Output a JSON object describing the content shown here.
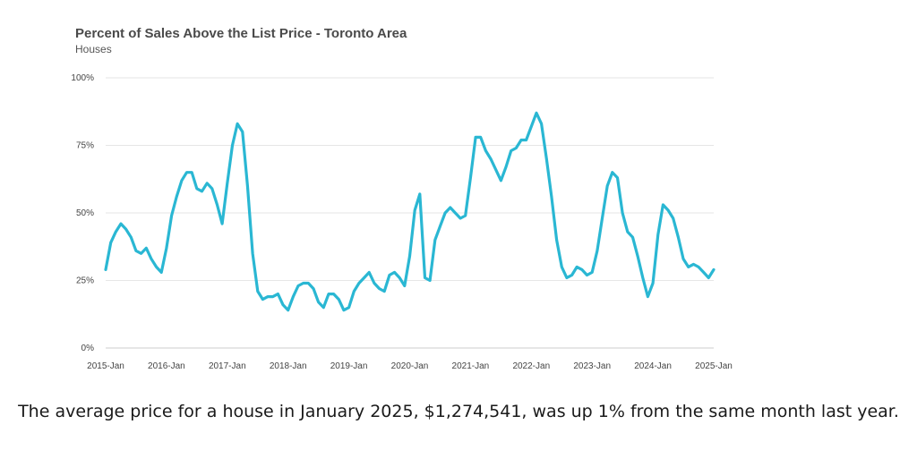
{
  "chart_data": {
    "type": "line",
    "title": "Percent of Sales Above the List Price - Toronto Area",
    "subtitle": "Houses",
    "xlabel": "",
    "ylabel": "",
    "ylim": [
      0,
      100
    ],
    "y_ticks": [
      "0%",
      "25%",
      "50%",
      "75%",
      "100%"
    ],
    "y_tick_values": [
      0,
      25,
      50,
      75,
      100
    ],
    "x_ticks": [
      "2015-Jan",
      "2016-Jan",
      "2017-Jan",
      "2018-Jan",
      "2019-Jan",
      "2020-Jan",
      "2021-Jan",
      "2022-Jan",
      "2023-Jan",
      "2024-Jan",
      "2025-Jan"
    ],
    "grid": true,
    "line_color": "#2ab7d3",
    "series": [
      {
        "x": [
          "2015-01",
          "2015-02",
          "2015-03",
          "2015-04",
          "2015-05",
          "2015-06",
          "2015-07",
          "2015-08",
          "2015-09",
          "2015-10",
          "2015-11",
          "2015-12",
          "2016-01",
          "2016-02",
          "2016-03",
          "2016-04",
          "2016-05",
          "2016-06",
          "2016-07",
          "2016-08",
          "2016-09",
          "2016-10",
          "2016-11",
          "2016-12",
          "2017-01",
          "2017-02",
          "2017-03",
          "2017-04",
          "2017-05",
          "2017-06",
          "2017-07",
          "2017-08",
          "2017-09",
          "2017-10",
          "2017-11",
          "2017-12",
          "2018-01",
          "2018-02",
          "2018-03",
          "2018-04",
          "2018-05",
          "2018-06",
          "2018-07",
          "2018-08",
          "2018-09",
          "2018-10",
          "2018-11",
          "2018-12",
          "2019-01",
          "2019-02",
          "2019-03",
          "2019-04",
          "2019-05",
          "2019-06",
          "2019-07",
          "2019-08",
          "2019-09",
          "2019-10",
          "2019-11",
          "2019-12",
          "2020-01",
          "2020-02",
          "2020-03",
          "2020-04",
          "2020-05",
          "2020-06",
          "2020-07",
          "2020-08",
          "2020-09",
          "2020-10",
          "2020-11",
          "2020-12",
          "2021-01",
          "2021-02",
          "2021-03",
          "2021-04",
          "2021-05",
          "2021-06",
          "2021-07",
          "2021-08",
          "2021-09",
          "2021-10",
          "2021-11",
          "2021-12",
          "2022-01",
          "2022-02",
          "2022-03",
          "2022-04",
          "2022-05",
          "2022-06",
          "2022-07",
          "2022-08",
          "2022-09",
          "2022-10",
          "2022-11",
          "2022-12",
          "2023-01",
          "2023-02",
          "2023-03",
          "2023-04",
          "2023-05",
          "2023-06",
          "2023-07",
          "2023-08",
          "2023-09",
          "2023-10",
          "2023-11",
          "2023-12",
          "2024-01",
          "2024-02",
          "2024-03",
          "2024-04",
          "2024-05",
          "2024-06",
          "2024-07",
          "2024-08",
          "2024-09",
          "2024-10",
          "2024-11",
          "2024-12",
          "2025-01"
        ],
        "values": [
          29,
          39,
          43,
          46,
          44,
          41,
          36,
          35,
          37,
          33,
          30,
          28,
          37,
          49,
          56,
          62,
          65,
          65,
          59,
          58,
          61,
          59,
          53,
          46,
          61,
          75,
          83,
          80,
          60,
          35,
          21,
          18,
          19,
          19,
          20,
          16,
          14,
          19,
          23,
          24,
          24,
          22,
          17,
          15,
          20,
          20,
          18,
          14,
          15,
          21,
          24,
          26,
          28,
          24,
          22,
          21,
          27,
          28,
          26,
          23,
          34,
          51,
          57,
          26,
          25,
          40,
          45,
          50,
          52,
          50,
          48,
          49,
          63,
          78,
          78,
          73,
          70,
          66,
          62,
          67,
          73,
          74,
          77,
          77,
          82,
          87,
          83,
          70,
          56,
          40,
          30,
          26,
          27,
          30,
          29,
          27,
          28,
          36,
          48,
          60,
          65,
          63,
          50,
          43,
          41,
          34,
          26,
          19,
          24,
          42,
          53,
          51,
          48,
          41,
          33,
          30,
          31,
          30,
          28,
          26,
          29
        ]
      }
    ]
  },
  "caption": "The average price for a house in January 2025, $1,274,541, was up 1% from the same month last year."
}
